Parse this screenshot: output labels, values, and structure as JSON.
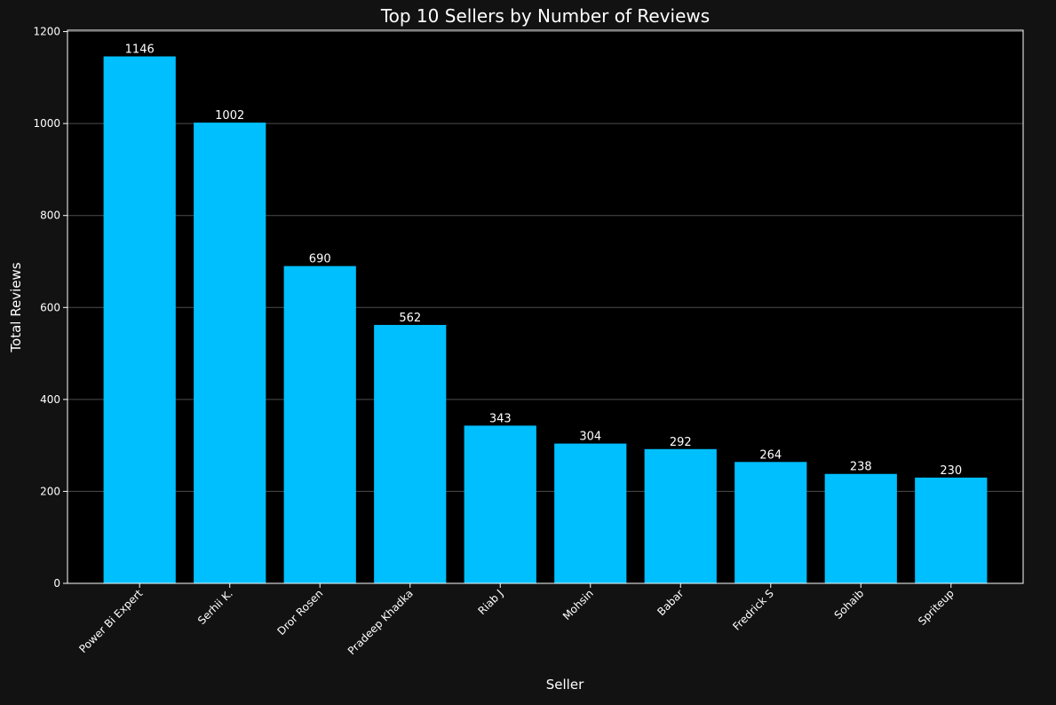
{
  "chart_data": {
    "type": "bar",
    "title": "Top 10 Sellers by Number of Reviews",
    "xlabel": "Seller",
    "ylabel": "Total Reviews",
    "categories": [
      "Power Bi Expert",
      "Serhii K.",
      "Dror Rosen",
      "Pradeep Khadka",
      "Riab J",
      "Mohsin",
      "Babar",
      "Fredrick S",
      "Sohaib",
      "Spriteup"
    ],
    "values": [
      1146,
      1002,
      690,
      562,
      343,
      304,
      292,
      264,
      238,
      230
    ],
    "data_labels": [
      "1146",
      "1002",
      "690",
      "562",
      "343",
      "304",
      "292",
      "264",
      "238",
      "230"
    ],
    "ylim": [
      0,
      1203
    ],
    "yticks": [
      0,
      200,
      400,
      600,
      800,
      1000,
      1200
    ],
    "grid": "y",
    "legend": "none",
    "colors": {
      "figure_background": "#121212",
      "plot_background": "#000000",
      "bar": "#00bfff",
      "text": "#ffffff",
      "grid": "#4d4d4d"
    }
  }
}
